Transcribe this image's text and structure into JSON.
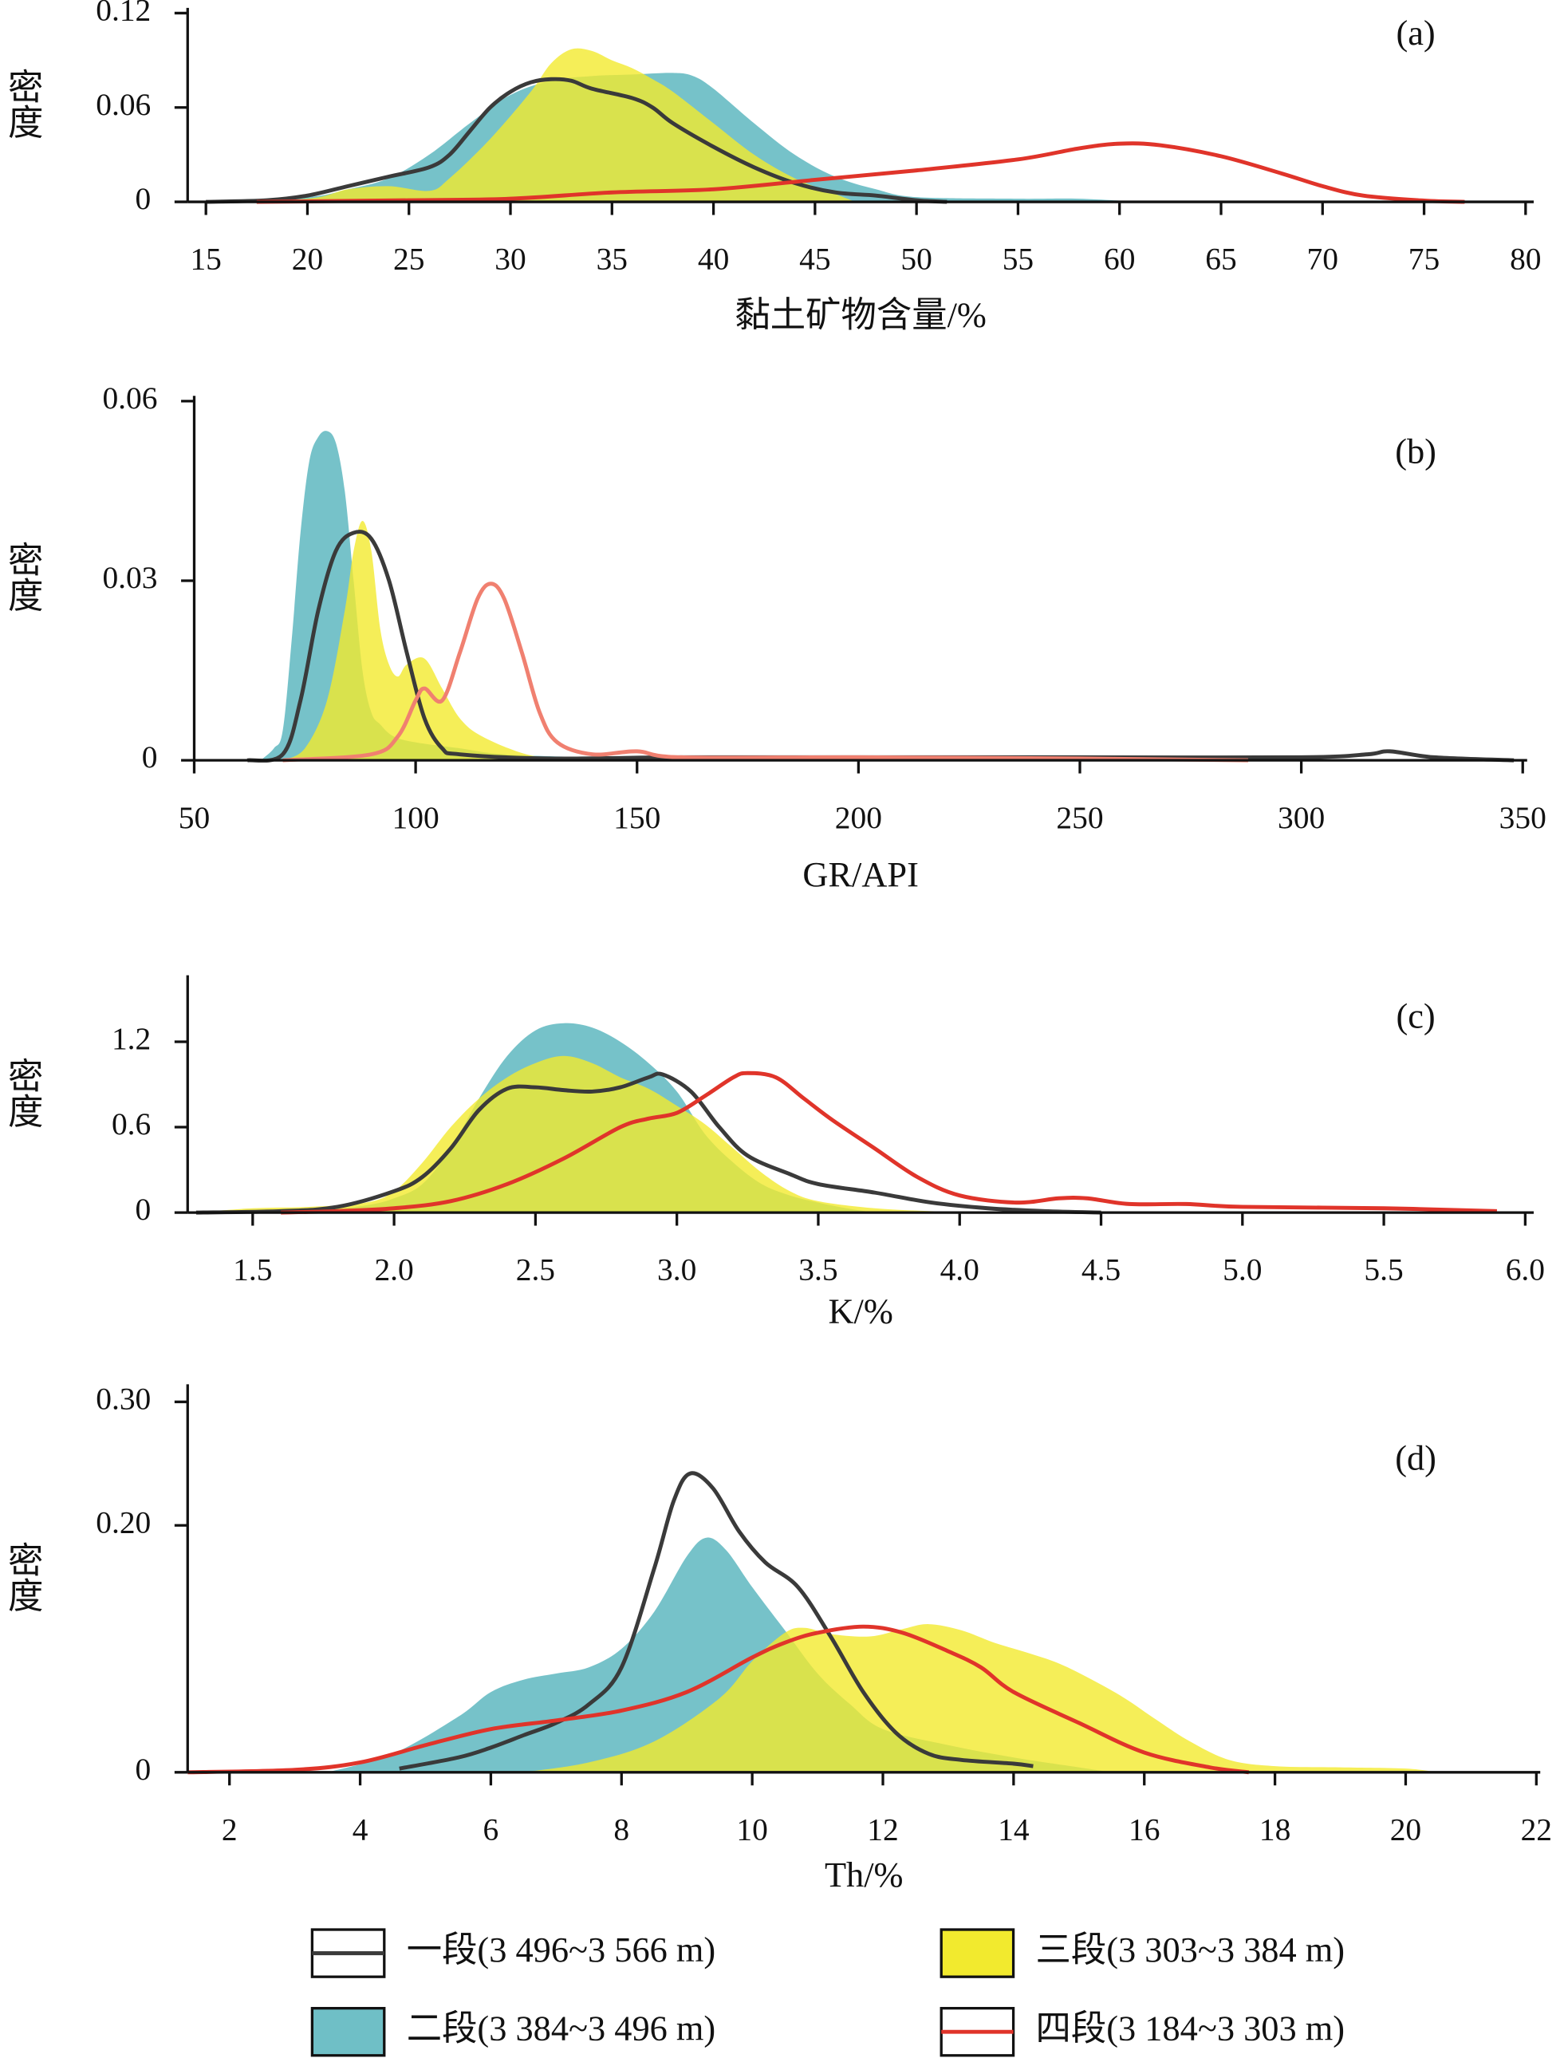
{
  "chart_data": [
    {
      "type": "area",
      "annotation": "(a)",
      "ylabel": "密度",
      "xlabel": "黏土矿物含量/%",
      "xlim": [
        14.1,
        80.4
      ],
      "xticks": [
        15,
        20,
        25,
        30,
        35,
        40,
        45,
        50,
        55,
        60,
        65,
        70,
        75,
        80
      ],
      "ylim": [
        0,
        0.12
      ],
      "yticks": [
        0,
        0.06,
        0.12
      ],
      "series": [
        {
          "color": "#3a3a3a",
          "x": [
            15,
            18,
            20,
            22,
            24,
            26,
            27,
            28,
            29,
            30,
            31,
            32,
            33,
            34,
            36,
            37,
            38,
            40,
            42,
            44,
            46,
            48,
            50,
            51.5
          ],
          "values": [
            0,
            0.001,
            0.004,
            0.01,
            0.016,
            0.022,
            0.03,
            0.045,
            0.06,
            0.07,
            0.076,
            0.078,
            0.077,
            0.072,
            0.066,
            0.06,
            0.05,
            0.035,
            0.022,
            0.012,
            0.006,
            0.004,
            0.001,
            0
          ]
        },
        {
          "color": "#6fbfc6",
          "x": [
            15,
            20,
            22,
            24,
            26,
            28,
            30,
            32,
            34,
            36,
            38,
            39,
            40,
            42,
            44,
            46,
            48,
            50,
            55,
            58,
            61
          ],
          "values": [
            0,
            0.003,
            0.008,
            0.015,
            0.03,
            0.05,
            0.068,
            0.077,
            0.08,
            0.081,
            0.082,
            0.08,
            0.072,
            0.05,
            0.03,
            0.016,
            0.008,
            0.003,
            0.002,
            0.002,
            0
          ]
        },
        {
          "color": "#f2ea2e",
          "x": [
            15,
            20,
            22,
            24,
            26,
            27,
            29,
            31,
            32,
            33,
            34,
            35,
            36,
            37,
            38,
            40,
            42,
            44,
            46,
            47
          ],
          "values": [
            0,
            0.002,
            0.008,
            0.01,
            0.007,
            0.015,
            0.04,
            0.07,
            0.088,
            0.097,
            0.096,
            0.09,
            0.085,
            0.078,
            0.07,
            0.05,
            0.03,
            0.015,
            0.005,
            0
          ]
        },
        {
          "color": "#e0342a",
          "x": [
            17.5,
            25,
            30,
            35,
            40,
            45,
            50,
            55,
            58,
            60,
            62,
            65,
            68,
            70,
            72,
            75,
            77
          ],
          "values": [
            0,
            0.001,
            0.002,
            0.006,
            0.008,
            0.014,
            0.02,
            0.027,
            0.034,
            0.037,
            0.036,
            0.029,
            0.018,
            0.01,
            0.004,
            0.0008,
            0
          ]
        }
      ]
    },
    {
      "type": "area",
      "annotation": "(b)",
      "ylabel": "密度",
      "xlabel": "GR/API",
      "xlim": [
        50,
        351
      ],
      "xticks": [
        50,
        100,
        150,
        200,
        250,
        300,
        350
      ],
      "ylim": [
        0,
        0.06
      ],
      "yticks": [
        0,
        0.03,
        0.06
      ],
      "series": [
        {
          "color": "#3a3a3a",
          "x": [
            62,
            70,
            74,
            78,
            82,
            86,
            90,
            94,
            98,
            102,
            106,
            110,
            130,
            160,
            200,
            220,
            250,
            300,
            315,
            320,
            330,
            348
          ],
          "values": [
            0,
            0.001,
            0.01,
            0.025,
            0.035,
            0.038,
            0.037,
            0.03,
            0.018,
            0.007,
            0.002,
            0.001,
            0.0003,
            0.0005,
            0.0005,
            0.0005,
            0.0005,
            0.0005,
            0.001,
            0.0015,
            0.0005,
            0
          ]
        },
        {
          "color": "#6fbfc6",
          "x": [
            65,
            68,
            70,
            72,
            74,
            76,
            78,
            80,
            82,
            84,
            86,
            88,
            90,
            92,
            95,
            100,
            110,
            120,
            140,
            170
          ],
          "values": [
            0,
            0.002,
            0.005,
            0.02,
            0.038,
            0.05,
            0.054,
            0.055,
            0.053,
            0.045,
            0.03,
            0.015,
            0.008,
            0.006,
            0.004,
            0.003,
            0.002,
            0.001,
            0.0005,
            0
          ]
        },
        {
          "color": "#f2ea2e",
          "x": [
            70,
            75,
            80,
            84,
            86,
            88,
            90,
            92,
            94,
            96,
            98,
            102,
            106,
            110,
            115,
            125,
            135
          ],
          "values": [
            0,
            0.002,
            0.01,
            0.025,
            0.035,
            0.04,
            0.035,
            0.022,
            0.016,
            0.014,
            0.016,
            0.017,
            0.012,
            0.007,
            0.004,
            0.001,
            0
          ]
        },
        {
          "color": "#f08070",
          "x": [
            70,
            90,
            96,
            100,
            102,
            106,
            110,
            114,
            117,
            120,
            124,
            128,
            132,
            140,
            150,
            160,
            200,
            250,
            288
          ],
          "values": [
            0,
            0.001,
            0.004,
            0.01,
            0.012,
            0.01,
            0.018,
            0.027,
            0.0295,
            0.027,
            0.018,
            0.008,
            0.003,
            0.001,
            0.0015,
            0.0005,
            0.0005,
            0.0003,
            0
          ]
        }
      ]
    },
    {
      "type": "area",
      "annotation": "(c)",
      "ylabel": "密度",
      "xlabel": "K/%",
      "xlim": [
        1.27,
        6.03
      ],
      "xticks": [
        1.5,
        {
          "value": 2,
          "label": "2.0"
        },
        2.5,
        {
          "value": 3,
          "label": "3.0"
        },
        3.5,
        {
          "value": 4,
          "label": "4.0"
        },
        4.5,
        {
          "value": 5,
          "label": "5.0"
        },
        5.5,
        {
          "value": 6,
          "label": "6.0"
        }
      ],
      "ylim": [
        0,
        1.63
      ],
      "yticks": [
        0,
        0.6,
        1.2
      ],
      "series": [
        {
          "color": "#3a3a3a",
          "x": [
            1.3,
            1.6,
            1.8,
            2.0,
            2.1,
            2.2,
            2.3,
            2.4,
            2.5,
            2.6,
            2.7,
            2.8,
            2.9,
            2.95,
            3.05,
            3.15,
            3.25,
            3.4,
            3.5,
            3.7,
            3.9,
            4.1,
            4.3,
            4.5
          ],
          "values": [
            0,
            0.01,
            0.04,
            0.15,
            0.25,
            0.45,
            0.72,
            0.87,
            0.88,
            0.86,
            0.85,
            0.88,
            0.95,
            0.97,
            0.85,
            0.6,
            0.4,
            0.27,
            0.2,
            0.14,
            0.07,
            0.03,
            0.01,
            0
          ]
        },
        {
          "color": "#6fbfc6",
          "x": [
            1.7,
            1.9,
            2.0,
            2.1,
            2.2,
            2.3,
            2.4,
            2.5,
            2.6,
            2.7,
            2.8,
            2.9,
            3.0,
            3.1,
            3.2,
            3.3,
            3.4,
            3.5,
            3.6,
            3.7
          ],
          "values": [
            0,
            0.05,
            0.1,
            0.2,
            0.45,
            0.8,
            1.1,
            1.28,
            1.33,
            1.3,
            1.2,
            1.05,
            0.85,
            0.55,
            0.35,
            0.2,
            0.12,
            0.07,
            0.03,
            0
          ]
        },
        {
          "color": "#f2ea2e",
          "x": [
            1.3,
            1.5,
            1.7,
            1.9,
            2.0,
            2.1,
            2.2,
            2.3,
            2.4,
            2.5,
            2.6,
            2.7,
            2.8,
            2.9,
            3.0,
            3.1,
            3.2,
            3.3,
            3.4,
            3.5,
            3.7,
            3.9,
            4.1
          ],
          "values": [
            0,
            0.03,
            0.04,
            0.07,
            0.15,
            0.35,
            0.6,
            0.8,
            0.95,
            1.05,
            1.1,
            1.05,
            0.95,
            0.87,
            0.75,
            0.62,
            0.45,
            0.28,
            0.15,
            0.08,
            0.03,
            0.01,
            0
          ]
        },
        {
          "color": "#e0342a",
          "x": [
            1.6,
            1.8,
            2.0,
            2.2,
            2.4,
            2.6,
            2.8,
            2.9,
            3.0,
            3.1,
            3.2,
            3.25,
            3.35,
            3.45,
            3.55,
            3.7,
            3.85,
            4.0,
            4.2,
            4.35,
            4.45,
            4.6,
            4.8,
            5.0,
            5.5,
            5.9
          ],
          "values": [
            0,
            0.01,
            0.03,
            0.08,
            0.2,
            0.38,
            0.6,
            0.66,
            0.7,
            0.82,
            0.95,
            0.98,
            0.95,
            0.8,
            0.65,
            0.45,
            0.25,
            0.12,
            0.07,
            0.1,
            0.1,
            0.06,
            0.06,
            0.04,
            0.03,
            0.01
          ]
        }
      ]
    },
    {
      "type": "area",
      "annotation": "(d)",
      "ylabel": "密度",
      "xlabel": "Th/%",
      "xlim": [
        1.36,
        22.06
      ],
      "xticks": [
        2,
        4,
        6,
        8,
        10,
        12,
        14,
        16,
        18,
        20,
        22
      ],
      "ylim": [
        0,
        0.31
      ],
      "yticks": [
        0,
        {
          "value": 0.2,
          "label": "0.20"
        },
        {
          "value": 0.3,
          "label": "0.30"
        }
      ],
      "series": [
        {
          "color": "#3a3a3a",
          "x": [
            4.6,
            5.5,
            6,
            6.5,
            7,
            7.5,
            8,
            8.5,
            8.8,
            9.05,
            9.4,
            9.8,
            10.2,
            10.7,
            11.2,
            11.7,
            12.2,
            12.7,
            13.2,
            14,
            14.3
          ],
          "values": [
            0.003,
            0.012,
            0.02,
            0.03,
            0.04,
            0.055,
            0.085,
            0.165,
            0.22,
            0.242,
            0.23,
            0.195,
            0.17,
            0.15,
            0.11,
            0.065,
            0.032,
            0.015,
            0.01,
            0.007,
            0.005
          ]
        },
        {
          "color": "#6fbfc6",
          "x": [
            3.5,
            4.5,
            5.5,
            6,
            6.5,
            7,
            7.5,
            8,
            8.5,
            9,
            9.3,
            9.6,
            10,
            10.5,
            11,
            11.5,
            12,
            13,
            14,
            15,
            15.5
          ],
          "values": [
            0,
            0.015,
            0.045,
            0.065,
            0.075,
            0.08,
            0.085,
            0.1,
            0.13,
            0.175,
            0.19,
            0.18,
            0.15,
            0.115,
            0.08,
            0.055,
            0.035,
            0.022,
            0.012,
            0.004,
            0
          ]
        },
        {
          "color": "#f2ea2e",
          "x": [
            6.5,
            7.5,
            8.5,
            9.5,
            10,
            10.5,
            10.8,
            11.2,
            11.8,
            12.3,
            12.7,
            13.2,
            13.7,
            14.2,
            14.7,
            15.2,
            15.7,
            16.2,
            16.7,
            17.3,
            18,
            19,
            20,
            20.5
          ],
          "values": [
            0,
            0.008,
            0.025,
            0.06,
            0.09,
            0.113,
            0.117,
            0.112,
            0.11,
            0.116,
            0.12,
            0.115,
            0.105,
            0.097,
            0.088,
            0.075,
            0.06,
            0.042,
            0.025,
            0.01,
            0.005,
            0.004,
            0.003,
            0
          ]
        },
        {
          "color": "#e0342a",
          "x": [
            1.36,
            3,
            4,
            5,
            6,
            7,
            8,
            9,
            10,
            10.5,
            11,
            11.7,
            12.3,
            13,
            13.5,
            14,
            15,
            16,
            17,
            17.6
          ],
          "values": [
            0,
            0.002,
            0.008,
            0.022,
            0.035,
            0.042,
            0.05,
            0.065,
            0.093,
            0.105,
            0.113,
            0.118,
            0.113,
            0.098,
            0.085,
            0.065,
            0.04,
            0.016,
            0.004,
            0
          ]
        }
      ]
    }
  ],
  "legend": [
    {
      "name": "一段(3 496~3 566 m)",
      "color": "#3a3a3a",
      "fill": false
    },
    {
      "name": "二段(3 384~3 496 m)",
      "color": "#6fbfc6",
      "fill": true
    },
    {
      "name": "三段(3 303~3 384 m)",
      "color": "#f2ea2e",
      "fill": true
    },
    {
      "name": "四段(3 184~3 303 m)",
      "color": "#e0342a",
      "fill": false
    }
  ]
}
